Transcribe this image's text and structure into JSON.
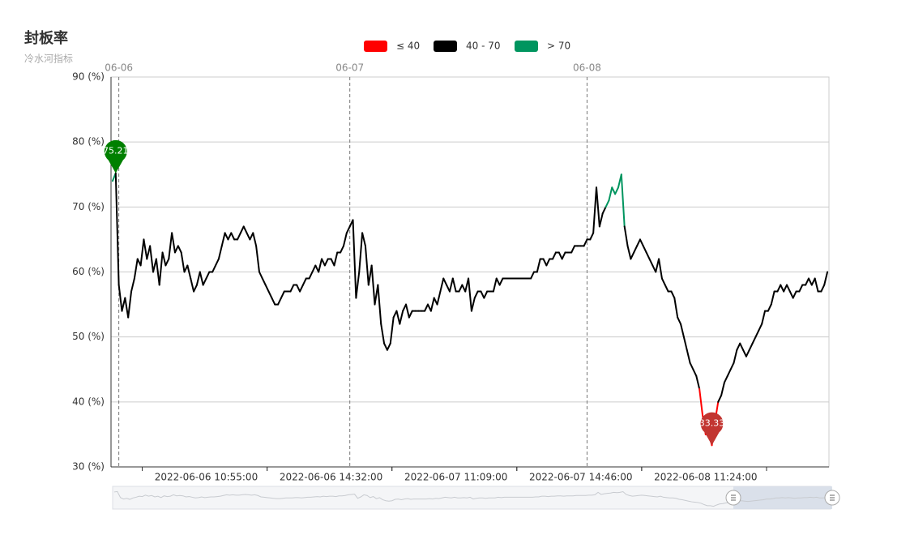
{
  "chart_data": {
    "type": "line",
    "title": "封板率",
    "subtitle": "冷水河指标",
    "grid": true,
    "ylim": [
      30,
      90
    ],
    "yticks": [
      {
        "value": 30,
        "label": "30 (%)"
      },
      {
        "value": 40,
        "label": "40 (%)"
      },
      {
        "value": 50,
        "label": "50 (%)"
      },
      {
        "value": 60,
        "label": "60 (%)"
      },
      {
        "value": 70,
        "label": "70 (%)"
      },
      {
        "value": 80,
        "label": "80 (%)"
      },
      {
        "value": 90,
        "label": "90 (%)"
      }
    ],
    "pieces": [
      {
        "label": "≤ 40",
        "max": 40,
        "color": "#ff0000"
      },
      {
        "label": "40 - 70",
        "min": 40,
        "max": 70,
        "color": "#000000"
      },
      {
        "label": "> 70",
        "min": 70,
        "color": "#00955f"
      }
    ],
    "max_marker_color": "#008000",
    "min_marker_color": "#c23531",
    "categories": [
      null,
      null,
      null,
      null,
      null,
      null,
      null,
      null,
      null,
      null,
      null,
      null,
      null,
      null,
      null,
      null,
      null,
      null,
      null,
      null,
      null,
      null,
      null,
      null,
      null,
      null,
      null,
      null,
      null,
      null,
      "2022-06-06 10:55:00",
      null,
      null,
      null,
      null,
      null,
      null,
      null,
      null,
      null,
      null,
      null,
      null,
      null,
      null,
      null,
      null,
      null,
      null,
      null,
      null,
      null,
      null,
      null,
      null,
      null,
      null,
      null,
      null,
      null,
      null,
      null,
      null,
      null,
      null,
      null,
      null,
      null,
      null,
      null,
      "2022-06-06 14:32:00",
      null,
      null,
      null,
      null,
      null,
      null,
      null,
      null,
      null,
      null,
      null,
      null,
      null,
      null,
      null,
      null,
      null,
      null,
      null,
      null,
      null,
      null,
      null,
      null,
      null,
      null,
      null,
      null,
      null,
      null,
      null,
      null,
      null,
      null,
      null,
      null,
      null,
      null,
      null,
      "2022-06-07 11:09:00",
      null,
      null,
      null,
      null,
      null,
      null,
      null,
      null,
      null,
      null,
      null,
      null,
      null,
      null,
      null,
      null,
      null,
      null,
      null,
      null,
      null,
      null,
      null,
      null,
      null,
      null,
      null,
      null,
      null,
      null,
      null,
      null,
      null,
      null,
      null,
      null,
      null,
      null,
      null,
      "2022-06-07 14:46:00",
      null,
      null,
      null,
      null,
      null,
      null,
      null,
      null,
      null,
      null,
      null,
      null,
      null,
      null,
      null,
      null,
      null,
      null,
      null,
      null,
      null,
      null,
      null,
      null,
      null,
      null,
      null,
      null,
      null,
      null,
      null,
      null,
      null,
      null,
      null,
      null,
      null,
      null,
      null,
      "2022-06-08 11:24:00",
      null,
      null,
      null,
      null,
      null,
      null,
      null,
      null,
      null,
      null,
      null,
      null,
      null,
      null,
      null,
      null,
      null,
      null,
      null,
      null,
      null,
      null,
      null,
      null,
      null,
      null,
      null,
      null,
      null,
      null,
      null,
      null,
      null,
      null,
      null,
      null,
      null,
      null,
      null
    ],
    "day_labels": [
      null,
      null,
      "06-06",
      null,
      null,
      null,
      null,
      null,
      null,
      null,
      null,
      null,
      null,
      null,
      null,
      null,
      null,
      null,
      null,
      null,
      null,
      null,
      null,
      null,
      null,
      null,
      null,
      null,
      null,
      null,
      null,
      null,
      null,
      null,
      null,
      null,
      null,
      null,
      null,
      null,
      null,
      null,
      null,
      null,
      null,
      null,
      null,
      null,
      null,
      null,
      null,
      null,
      null,
      null,
      null,
      null,
      null,
      null,
      null,
      null,
      null,
      null,
      null,
      null,
      null,
      null,
      null,
      null,
      null,
      null,
      null,
      null,
      null,
      null,
      null,
      null,
      "06-07",
      null,
      null,
      null,
      null,
      null,
      null,
      null,
      null,
      null,
      null,
      null,
      null,
      null,
      null,
      null,
      null,
      null,
      null,
      null,
      null,
      null,
      null,
      null,
      null,
      null,
      null,
      null,
      null,
      null,
      null,
      null,
      null,
      null,
      null,
      null,
      null,
      null,
      null,
      null,
      null,
      null,
      null,
      null,
      null,
      null,
      null,
      null,
      null,
      null,
      null,
      null,
      null,
      null,
      null,
      null,
      null,
      null,
      null,
      null,
      null,
      null,
      null,
      null,
      null,
      null,
      null,
      null,
      null,
      null,
      null,
      null,
      null,
      null,
      null,
      null,
      "06-08",
      null,
      null,
      null,
      null,
      null,
      null,
      null,
      null,
      null,
      null,
      null,
      null,
      null,
      null,
      null,
      null,
      null,
      null,
      null,
      null,
      null,
      null,
      null,
      null,
      null,
      null,
      null,
      null,
      null,
      null,
      null,
      null,
      null,
      null,
      null,
      null,
      null,
      null,
      null,
      null,
      null,
      null,
      null,
      null,
      null,
      null,
      null,
      null,
      null,
      null,
      null,
      null,
      null,
      null,
      null,
      null,
      null,
      null,
      null,
      null,
      null,
      null,
      null,
      null,
      null,
      null,
      null,
      null,
      null,
      null,
      null,
      null,
      null,
      null,
      null
    ],
    "values": [
      74,
      75.21,
      58,
      54,
      56,
      53,
      57,
      59,
      62,
      61,
      65,
      62,
      64,
      60,
      62,
      58,
      63,
      61,
      62,
      66,
      63,
      64,
      63,
      60,
      61,
      59,
      57,
      58,
      60,
      58,
      59,
      60,
      60,
      61,
      62,
      64,
      66,
      65,
      66,
      65,
      65,
      66,
      67,
      66,
      65,
      66,
      64,
      60,
      59,
      58,
      57,
      56,
      55,
      55,
      56,
      57,
      57,
      57,
      58,
      58,
      57,
      58,
      59,
      59,
      60,
      61,
      60,
      62,
      61,
      62,
      62,
      61,
      63,
      63,
      64,
      66,
      67,
      68,
      56,
      60,
      66,
      64,
      58,
      61,
      55,
      58,
      52,
      49,
      48,
      49,
      53,
      54,
      52,
      54,
      55,
      53,
      54,
      54,
      54,
      54,
      54,
      55,
      54,
      56,
      55,
      57,
      59,
      58,
      57,
      59,
      57,
      57,
      58,
      57,
      59,
      54,
      56,
      57,
      57,
      56,
      57,
      57,
      57,
      59,
      58,
      59,
      59,
      59,
      59,
      59,
      59,
      59,
      59,
      59,
      59,
      60,
      60,
      62,
      62,
      61,
      62,
      62,
      63,
      63,
      62,
      63,
      63,
      63,
      64,
      64,
      64,
      64,
      65,
      65,
      66,
      73,
      67,
      69,
      70,
      71,
      73,
      72,
      73,
      75,
      67,
      64,
      62,
      63,
      64,
      65,
      64,
      63,
      62,
      61,
      60,
      62,
      59,
      58,
      57,
      57,
      56,
      53,
      52,
      50,
      48,
      46,
      45,
      44,
      42,
      38,
      35,
      35,
      33.33,
      37,
      40,
      41,
      43,
      44,
      45,
      46,
      48,
      49,
      48,
      47,
      48,
      49,
      50,
      51,
      52,
      54,
      54,
      55,
      57,
      57,
      58,
      57,
      58,
      57,
      56,
      57,
      57,
      58,
      58,
      59,
      58,
      59,
      57,
      57,
      58,
      60
    ]
  }
}
